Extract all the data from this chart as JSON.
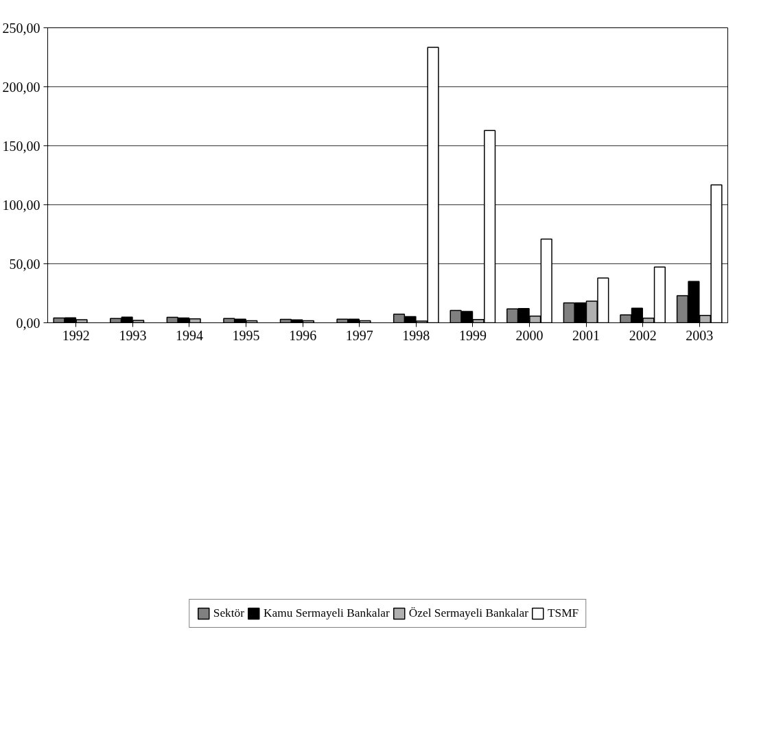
{
  "chart_data": {
    "type": "bar",
    "categories": [
      "1992",
      "1993",
      "1994",
      "1995",
      "1996",
      "1997",
      "1998",
      "1999",
      "2000",
      "2001",
      "2002",
      "2003"
    ],
    "series": [
      {
        "name": "Sektör",
        "color": "#808080",
        "values": [
          4.0,
          3.6,
          4.7,
          3.6,
          2.9,
          3.1,
          7.3,
          10.4,
          11.8,
          16.9,
          6.7,
          23.0
        ]
      },
      {
        "name": "Kamu Sermayeli Bankalar",
        "color": "#000000",
        "values": [
          4.2,
          4.8,
          4.0,
          3.0,
          2.4,
          3.0,
          5.3,
          9.6,
          12.1,
          16.9,
          12.4,
          35.1
        ]
      },
      {
        "name": "Özel Sermayeli Bankalar",
        "color": "#b0b0b0",
        "values": [
          2.6,
          2.0,
          3.3,
          1.8,
          1.7,
          1.8,
          1.4,
          2.8,
          5.6,
          18.3,
          3.9,
          6.2
        ]
      },
      {
        "name": "TSMF",
        "color": "#ffffff",
        "values": [
          null,
          null,
          null,
          null,
          null,
          null,
          233.4,
          163,
          71,
          37.9,
          47.2,
          116.9
        ]
      }
    ],
    "ylim": [
      0,
      250
    ],
    "yticks": [
      {
        "value": 0,
        "label": "0,00"
      },
      {
        "value": 50,
        "label": "50,00"
      },
      {
        "value": 100,
        "label": "100,00"
      },
      {
        "value": 150,
        "label": "150,00"
      },
      {
        "value": 200,
        "label": "200,00"
      },
      {
        "value": 250,
        "label": "250,00"
      }
    ],
    "grid": "y",
    "legend": "bottom"
  }
}
